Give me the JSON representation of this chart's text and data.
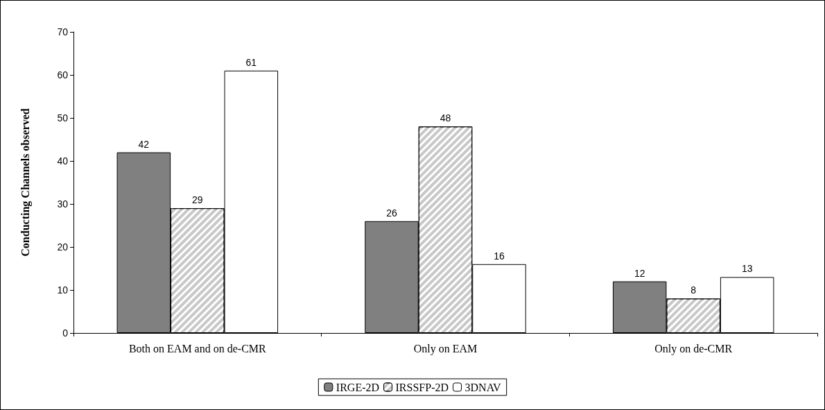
{
  "chart_data": {
    "type": "bar",
    "ylabel": "Conducting Channels observed",
    "categories": [
      "Both on EAM and on de-CMR",
      "Only on EAM",
      "Only on de-CMR"
    ],
    "series": [
      {
        "name": "IRGE-2D",
        "color": "#808080",
        "values": [
          42,
          26,
          12
        ]
      },
      {
        "name": "IRSSFP-2D",
        "color": "#c8c8c8",
        "values": [
          29,
          48,
          8
        ]
      },
      {
        "name": "3DNAV",
        "color": "#ffffff",
        "values": [
          61,
          16,
          13
        ]
      }
    ],
    "ylim": [
      0,
      70
    ],
    "yticks": [
      0,
      10,
      20,
      30,
      40,
      50,
      60,
      70
    ],
    "grid": false,
    "legend": "bottom",
    "data_labels": true
  }
}
